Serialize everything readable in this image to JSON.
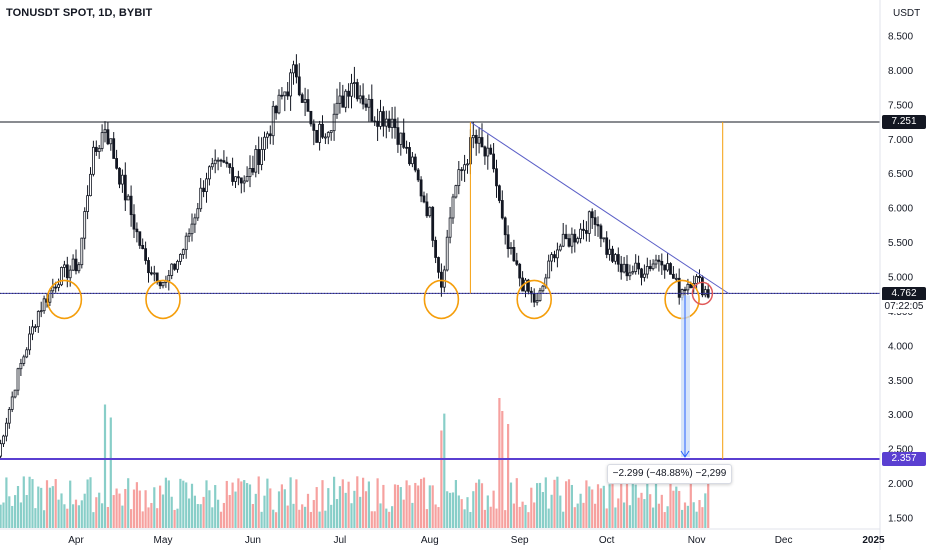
{
  "header": {
    "title": "TONUSDT SPOT, 1D, BYBIT",
    "currency": "USDT"
  },
  "chart_data": {
    "type": "candlestick",
    "y_axis": {
      "ticks": [
        "8.500",
        "8.000",
        "7.500",
        "7.000",
        "6.500",
        "6.000",
        "5.500",
        "5.000",
        "4.500",
        "4.000",
        "3.500",
        "3.000",
        "2.500",
        "2.000",
        "1.500"
      ],
      "range": [
        1.35,
        8.75
      ]
    },
    "x_axis": {
      "ticks": [
        "Apr",
        "May",
        "Jun",
        "Jul",
        "Aug",
        "Sep",
        "Oct",
        "Nov",
        "Dec",
        "2025"
      ]
    },
    "price_anchors": [
      [
        "2024-03-05",
        2.4
      ],
      [
        "2024-03-12",
        3.6
      ],
      [
        "2024-03-19",
        4.5
      ],
      [
        "2024-03-26",
        5.0
      ],
      [
        "2024-04-02",
        5.2
      ],
      [
        "2024-04-06",
        6.6
      ],
      [
        "2024-04-11",
        7.2
      ],
      [
        "2024-04-18",
        6.2
      ],
      [
        "2024-04-25",
        5.2
      ],
      [
        "2024-05-02",
        4.9
      ],
      [
        "2024-05-09",
        5.5
      ],
      [
        "2024-05-16",
        6.5
      ],
      [
        "2024-05-23",
        6.6
      ],
      [
        "2024-05-30",
        6.4
      ],
      [
        "2024-06-05",
        7.0
      ],
      [
        "2024-06-12",
        7.7
      ],
      [
        "2024-06-16",
        8.0
      ],
      [
        "2024-06-22",
        7.0
      ],
      [
        "2024-06-30",
        7.4
      ],
      [
        "2024-07-05",
        7.9
      ],
      [
        "2024-07-12",
        7.4
      ],
      [
        "2024-07-19",
        7.3
      ],
      [
        "2024-07-26",
        6.6
      ],
      [
        "2024-08-01",
        5.9
      ],
      [
        "2024-08-05",
        4.9
      ],
      [
        "2024-08-09",
        6.2
      ],
      [
        "2024-08-16",
        7.0
      ],
      [
        "2024-08-23",
        6.6
      ],
      [
        "2024-08-27",
        5.5
      ],
      [
        "2024-09-02",
        4.9
      ],
      [
        "2024-09-07",
        4.6
      ],
      [
        "2024-09-13",
        5.4
      ],
      [
        "2024-09-20",
        5.6
      ],
      [
        "2024-09-27",
        5.9
      ],
      [
        "2024-10-01",
        5.4
      ],
      [
        "2024-10-06",
        5.1
      ],
      [
        "2024-10-13",
        5.1
      ],
      [
        "2024-10-20",
        5.3
      ],
      [
        "2024-10-26",
        4.8
      ],
      [
        "2024-10-31",
        5.0
      ],
      [
        "2024-11-05",
        4.76
      ]
    ],
    "volume": {
      "description_values": "relative daily volume",
      "spikes": [
        [
          "2024-04-11",
          0.95
        ],
        [
          "2024-04-13",
          0.85
        ],
        [
          "2024-08-05",
          0.75
        ],
        [
          "2024-08-06",
          0.88
        ],
        [
          "2024-08-25",
          1.0
        ],
        [
          "2024-08-26",
          0.9
        ],
        [
          "2024-08-28",
          0.8
        ]
      ]
    },
    "horizontal_levels": {
      "resistance": "7.251",
      "support": "4.762",
      "target": "2.357"
    },
    "current_price": "4.762",
    "countdown": "07:22:05",
    "measurement": "−2.299 (−48.88%) −2,299",
    "colors": {
      "up": "#26a69a",
      "down": "#ef5350",
      "candle": "#131722",
      "trendline": "#5b5fc7",
      "support": "#3a3aa8",
      "target": "#5a3fd1",
      "orange_marker": "#f59e0b",
      "red_marker": "#e05a5a",
      "measure_fill": "#c9dcf7",
      "measure_line": "#2962ff"
    }
  }
}
